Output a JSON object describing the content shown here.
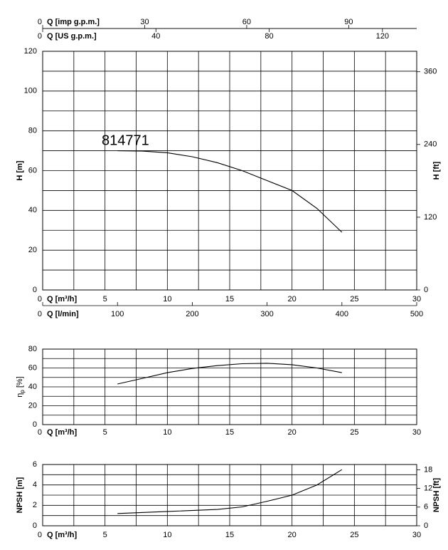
{
  "chart_data": [
    {
      "type": "line",
      "annotation": "814771",
      "xlabel": "Q [m³/h]",
      "xlim": [
        0,
        30
      ],
      "xticks": [
        0,
        5,
        10,
        15,
        20,
        25,
        30
      ],
      "xgrid": [
        0,
        2.5,
        5,
        7.5,
        10,
        12.5,
        15,
        17.5,
        20,
        22.5,
        25,
        27.5,
        30
      ],
      "ylabel": "H [m]",
      "ylim": [
        0,
        120
      ],
      "yticks": [
        0,
        20,
        40,
        60,
        80,
        100,
        120
      ],
      "ygrid": [
        0,
        10,
        20,
        30,
        40,
        50,
        60,
        70,
        80,
        90,
        100,
        110,
        120
      ],
      "y2label": "H [ft]",
      "y2lim": [
        0,
        393.7
      ],
      "y2ticks": [
        0,
        120,
        240,
        360
      ],
      "extra_x_axes": [
        {
          "label": "Q [l/min]",
          "lim": [
            0,
            500
          ],
          "ticks": [
            0,
            100,
            200,
            300,
            400,
            500
          ]
        },
        {
          "label": "Q [imp g.p.m.]",
          "lim": [
            0,
            110
          ],
          "ticks": [
            0,
            30,
            60,
            90
          ]
        },
        {
          "label": "Q [US g.p.m.]",
          "lim": [
            0,
            132.1
          ],
          "ticks": [
            0,
            40,
            80,
            120
          ]
        }
      ],
      "color": "#000000",
      "x": [
        6,
        8,
        10,
        12,
        14,
        16,
        18,
        20,
        22,
        24
      ],
      "values": [
        70,
        69.8,
        69,
        67,
        64,
        60,
        55,
        50,
        41,
        29
      ]
    },
    {
      "type": "line",
      "xlabel": "Q [m³/h]",
      "xlim": [
        0,
        30
      ],
      "xticks": [
        0,
        5,
        10,
        15,
        20,
        25,
        30
      ],
      "xgrid": [
        0,
        2.5,
        5,
        7.5,
        10,
        12.5,
        15,
        17.5,
        20,
        22.5,
        25,
        27.5,
        30
      ],
      "ylabel": "η",
      "ylabel_subscript": "p",
      "ylabel_unit": " [%]",
      "ylim": [
        0,
        80
      ],
      "yticks": [
        0,
        20,
        40,
        60,
        80
      ],
      "ygrid": [
        0,
        10,
        20,
        30,
        40,
        50,
        60,
        70,
        80
      ],
      "color": "#000000",
      "x": [
        6,
        8,
        10,
        12,
        14,
        16,
        18,
        20,
        22,
        24
      ],
      "values": [
        43,
        49,
        55,
        59.5,
        62.5,
        64.5,
        65,
        63.5,
        60,
        55
      ]
    },
    {
      "type": "line",
      "xlabel": "Q [m³/h]",
      "xlim": [
        0,
        30
      ],
      "xticks": [
        0,
        5,
        10,
        15,
        20,
        25,
        30
      ],
      "xgrid": [
        0,
        2.5,
        5,
        7.5,
        10,
        12.5,
        15,
        17.5,
        20,
        22.5,
        25,
        27.5,
        30
      ],
      "ylabel": "NPSH [m]",
      "ylim": [
        0,
        6
      ],
      "yticks": [
        0,
        2,
        4,
        6
      ],
      "ygrid": [
        0,
        1,
        2,
        3,
        4,
        5,
        6
      ],
      "y2label": "NPSH [ft]",
      "y2lim": [
        0,
        19.685
      ],
      "y2ticks": [
        0,
        6,
        12,
        18
      ],
      "color": "#000000",
      "x": [
        6,
        10,
        14,
        16,
        18,
        20,
        22,
        24
      ],
      "values": [
        1.2,
        1.4,
        1.6,
        1.85,
        2.4,
        3.0,
        4.0,
        5.5
      ]
    }
  ]
}
